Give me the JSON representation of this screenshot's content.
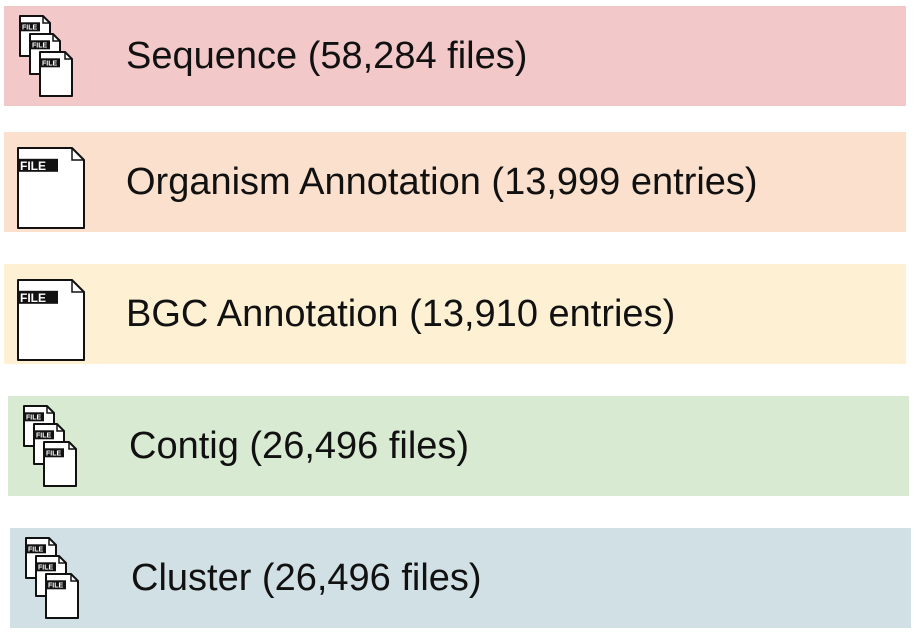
{
  "rows": [
    {
      "label": "Sequence (58,284 files)",
      "color": "#f2c8c8",
      "icon": "multi-file-icon",
      "icon_text": "FILE"
    },
    {
      "label": "Organism Annotation (13,999 entries)",
      "color": "#fae0cd",
      "icon": "file-icon",
      "icon_text": "FILE"
    },
    {
      "label": "BGC Annotation (13,910 entries)",
      "color": "#fdf0d3",
      "icon": "file-icon",
      "icon_text": "FILE"
    },
    {
      "label": "Contig (26,496 files)",
      "color": "#d9ead3",
      "icon": "multi-file-icon",
      "icon_text": "FILE"
    },
    {
      "label": "Cluster (26,496 files)",
      "color": "#d0e0e4",
      "icon": "multi-file-icon",
      "icon_text": "FILE"
    }
  ]
}
